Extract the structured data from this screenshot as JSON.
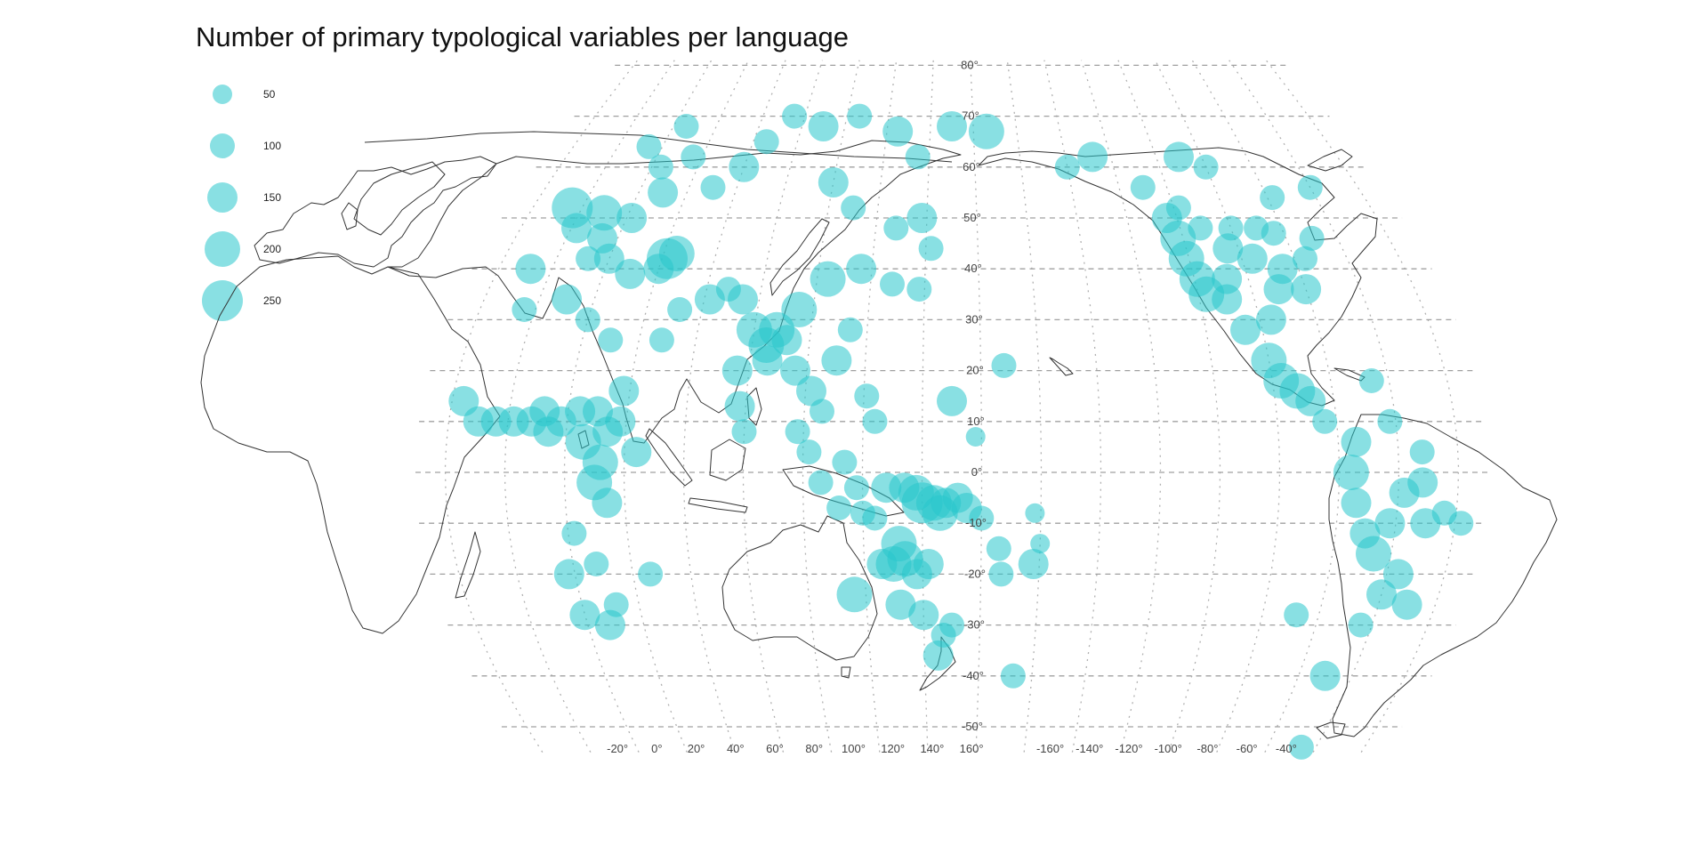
{
  "title": "Number of primary typological variables per language",
  "legend": {
    "items": [
      {
        "label": "50",
        "value": 50
      },
      {
        "label": "100",
        "value": 100
      },
      {
        "label": "150",
        "value": 150
      },
      {
        "label": "200",
        "value": 200
      },
      {
        "label": "250",
        "value": 250
      }
    ]
  },
  "point_color": "#28c6cc",
  "coastline_color": "#333333",
  "graticule_color": "#a0a0a0",
  "projection": "pacific-centered pseudocylindrical, central meridian 150°E",
  "lat_labels": [
    "80°",
    "70°",
    "60°",
    "50°",
    "40°",
    "30°",
    "20°",
    "10°",
    "0°",
    "-10°",
    "-20°",
    "-30°",
    "-40°",
    "-50°"
  ],
  "lon_labels": [
    "-20°",
    "0°",
    "20°",
    "40°",
    "60°",
    "80°",
    "100°",
    "120°",
    "140°",
    "160°",
    "-160°",
    "-140°",
    "-120°",
    "-100°",
    "-80°",
    "-60°",
    "-40°"
  ],
  "chart_data": {
    "type": "scatter",
    "title": "Number of primary typological variables per language",
    "size_legend": [
      50,
      100,
      150,
      200,
      250
    ],
    "x_label": "",
    "y_label": "",
    "points": [
      {
        "lon": 2,
        "lat": 48,
        "v": 150
      },
      {
        "lon": -4,
        "lat": 52,
        "v": 250
      },
      {
        "lon": 10,
        "lat": 51,
        "v": 200
      },
      {
        "lon": 14,
        "lat": 46,
        "v": 150
      },
      {
        "lon": 22,
        "lat": 50,
        "v": 150
      },
      {
        "lon": 30,
        "lat": 55,
        "v": 150
      },
      {
        "lon": 24,
        "lat": 60,
        "v": 100
      },
      {
        "lon": 14,
        "lat": 64,
        "v": 100
      },
      {
        "lon": 26,
        "lat": 68,
        "v": 100
      },
      {
        "lon": 36,
        "lat": 62,
        "v": 100
      },
      {
        "lon": 42,
        "lat": 42,
        "v": 250
      },
      {
        "lon": 45,
        "lat": 43,
        "v": 200
      },
      {
        "lon": 40,
        "lat": 40,
        "v": 150
      },
      {
        "lon": 30,
        "lat": 39,
        "v": 150
      },
      {
        "lon": 20,
        "lat": 42,
        "v": 150
      },
      {
        "lon": -8,
        "lat": 40,
        "v": 150
      },
      {
        "lon": 12,
        "lat": 42,
        "v": 100
      },
      {
        "lon": 50,
        "lat": 56,
        "v": 100
      },
      {
        "lon": 60,
        "lat": 60,
        "v": 150
      },
      {
        "lon": 66,
        "lat": 65,
        "v": 100
      },
      {
        "lon": 75,
        "lat": 70,
        "v": 100
      },
      {
        "lon": 90,
        "lat": 68,
        "v": 150
      },
      {
        "lon": 106,
        "lat": 70,
        "v": 100
      },
      {
        "lon": 125,
        "lat": 67,
        "v": 150
      },
      {
        "lon": 135,
        "lat": 62,
        "v": 100
      },
      {
        "lon": 150,
        "lat": 68,
        "v": 150
      },
      {
        "lon": 166,
        "lat": 67,
        "v": 200
      },
      {
        "lon": 100,
        "lat": 57,
        "v": 150
      },
      {
        "lon": 110,
        "lat": 52,
        "v": 100
      },
      {
        "lon": 128,
        "lat": 48,
        "v": 100
      },
      {
        "lon": 138,
        "lat": 50,
        "v": 150
      },
      {
        "lon": 142,
        "lat": 44,
        "v": 100
      },
      {
        "lon": 138,
        "lat": 36,
        "v": 100
      },
      {
        "lon": 128,
        "lat": 37,
        "v": 100
      },
      {
        "lon": 116,
        "lat": 40,
        "v": 150
      },
      {
        "lon": 104,
        "lat": 38,
        "v": 200
      },
      {
        "lon": 95,
        "lat": 32,
        "v": 200
      },
      {
        "lon": 88,
        "lat": 28,
        "v": 200
      },
      {
        "lon": 80,
        "lat": 28,
        "v": 200
      },
      {
        "lon": 85,
        "lat": 25,
        "v": 200
      },
      {
        "lon": 92,
        "lat": 26,
        "v": 150
      },
      {
        "lon": 74,
        "lat": 34,
        "v": 150
      },
      {
        "lon": 68,
        "lat": 36,
        "v": 100
      },
      {
        "lon": 62,
        "lat": 34,
        "v": 150
      },
      {
        "lon": 76,
        "lat": 20,
        "v": 150
      },
      {
        "lon": 78,
        "lat": 13,
        "v": 150
      },
      {
        "lon": 80,
        "lat": 8,
        "v": 100
      },
      {
        "lon": 86,
        "lat": 22,
        "v": 150
      },
      {
        "lon": 96,
        "lat": 20,
        "v": 150
      },
      {
        "lon": 102,
        "lat": 16,
        "v": 150
      },
      {
        "lon": 106,
        "lat": 12,
        "v": 100
      },
      {
        "lon": 98,
        "lat": 8,
        "v": 100
      },
      {
        "lon": 102,
        "lat": 4,
        "v": 100
      },
      {
        "lon": 110,
        "lat": 22,
        "v": 150
      },
      {
        "lon": 114,
        "lat": 28,
        "v": 100
      },
      {
        "lon": 121,
        "lat": 15,
        "v": 100
      },
      {
        "lon": 124,
        "lat": 10,
        "v": 100
      },
      {
        "lon": 114,
        "lat": 2,
        "v": 100
      },
      {
        "lon": 118,
        "lat": -3,
        "v": 100
      },
      {
        "lon": 106,
        "lat": -2,
        "v": 100
      },
      {
        "lon": 112,
        "lat": -7,
        "v": 100
      },
      {
        "lon": 120,
        "lat": -8,
        "v": 100
      },
      {
        "lon": 124,
        "lat": -9,
        "v": 100
      },
      {
        "lon": 128,
        "lat": -3,
        "v": 150
      },
      {
        "lon": 134,
        "lat": -3,
        "v": 150
      },
      {
        "lon": 138,
        "lat": -4,
        "v": 200
      },
      {
        "lon": 140,
        "lat": -6,
        "v": 250
      },
      {
        "lon": 144,
        "lat": -6,
        "v": 200
      },
      {
        "lon": 146,
        "lat": -8,
        "v": 200
      },
      {
        "lon": 148,
        "lat": -6,
        "v": 150
      },
      {
        "lon": 152,
        "lat": -5,
        "v": 150
      },
      {
        "lon": 155,
        "lat": -7,
        "v": 150
      },
      {
        "lon": 160,
        "lat": -9,
        "v": 100
      },
      {
        "lon": 166,
        "lat": -15,
        "v": 100
      },
      {
        "lon": 167,
        "lat": -20,
        "v": 100
      },
      {
        "lon": 178,
        "lat": -18,
        "v": 150
      },
      {
        "lon": 178,
        "lat": -8,
        "v": 50
      },
      {
        "lon": 180,
        "lat": -14,
        "v": 50
      },
      {
        "lon": 168,
        "lat": 21,
        "v": 100
      },
      {
        "lon": 158,
        "lat": 7,
        "v": 50
      },
      {
        "lon": 150,
        "lat": 14,
        "v": 150
      },
      {
        "lon": 132,
        "lat": -14,
        "v": 200
      },
      {
        "lon": 134,
        "lat": -17,
        "v": 200
      },
      {
        "lon": 130,
        "lat": -18,
        "v": 200
      },
      {
        "lon": 126,
        "lat": -18,
        "v": 150
      },
      {
        "lon": 138,
        "lat": -20,
        "v": 150
      },
      {
        "lon": 142,
        "lat": -18,
        "v": 150
      },
      {
        "lon": 116,
        "lat": -24,
        "v": 200
      },
      {
        "lon": 132,
        "lat": -26,
        "v": 150
      },
      {
        "lon": 140,
        "lat": -28,
        "v": 150
      },
      {
        "lon": 150,
        "lat": -30,
        "v": 100
      },
      {
        "lon": 145,
        "lat": -36,
        "v": 150
      },
      {
        "lon": 147,
        "lat": -32,
        "v": 100
      },
      {
        "lon": 173,
        "lat": -40,
        "v": 100
      },
      {
        "lon": -16,
        "lat": 14,
        "v": 150
      },
      {
        "lon": -10,
        "lat": 10,
        "v": 150
      },
      {
        "lon": -4,
        "lat": 10,
        "v": 150
      },
      {
        "lon": 2,
        "lat": 10,
        "v": 150
      },
      {
        "lon": 8,
        "lat": 10,
        "v": 150
      },
      {
        "lon": 12,
        "lat": 12,
        "v": 150
      },
      {
        "lon": 14,
        "lat": 8,
        "v": 150
      },
      {
        "lon": 18,
        "lat": 10,
        "v": 150
      },
      {
        "lon": 24,
        "lat": 12,
        "v": 150
      },
      {
        "lon": 30,
        "lat": 12,
        "v": 150
      },
      {
        "lon": 34,
        "lat": 8,
        "v": 150
      },
      {
        "lon": 38,
        "lat": 10,
        "v": 150
      },
      {
        "lon": 26,
        "lat": 6,
        "v": 200
      },
      {
        "lon": 32,
        "lat": 2,
        "v": 200
      },
      {
        "lon": 30,
        "lat": -2,
        "v": 200
      },
      {
        "lon": 34,
        "lat": -6,
        "v": 150
      },
      {
        "lon": 44,
        "lat": 4,
        "v": 150
      },
      {
        "lon": 22,
        "lat": -12,
        "v": 100
      },
      {
        "lon": 28,
        "lat": -18,
        "v": 100
      },
      {
        "lon": 18,
        "lat": -20,
        "v": 150
      },
      {
        "lon": 20,
        "lat": -28,
        "v": 150
      },
      {
        "lon": 28,
        "lat": -30,
        "v": 150
      },
      {
        "lon": 32,
        "lat": -26,
        "v": 100
      },
      {
        "lon": 46,
        "lat": -20,
        "v": 100
      },
      {
        "lon": 10,
        "lat": 34,
        "v": 150
      },
      {
        "lon": -4,
        "lat": 32,
        "v": 100
      },
      {
        "lon": 20,
        "lat": 30,
        "v": 100
      },
      {
        "lon": 30,
        "lat": 26,
        "v": 100
      },
      {
        "lon": 38,
        "lat": 16,
        "v": 150
      },
      {
        "lon": 48,
        "lat": 26,
        "v": 100
      },
      {
        "lon": 52,
        "lat": 32,
        "v": 100
      },
      {
        "lon": -148,
        "lat": 62,
        "v": 150
      },
      {
        "lon": -160,
        "lat": 60,
        "v": 100
      },
      {
        "lon": -130,
        "lat": 56,
        "v": 100
      },
      {
        "lon": -124,
        "lat": 50,
        "v": 150
      },
      {
        "lon": -122,
        "lat": 46,
        "v": 200
      },
      {
        "lon": -121,
        "lat": 42,
        "v": 200
      },
      {
        "lon": -119,
        "lat": 38,
        "v": 200
      },
      {
        "lon": -117,
        "lat": 35,
        "v": 200
      },
      {
        "lon": -110,
        "lat": 34,
        "v": 150
      },
      {
        "lon": -108,
        "lat": 38,
        "v": 150
      },
      {
        "lon": -104,
        "lat": 44,
        "v": 150
      },
      {
        "lon": -112,
        "lat": 48,
        "v": 100
      },
      {
        "lon": -100,
        "lat": 48,
        "v": 100
      },
      {
        "lon": -96,
        "lat": 42,
        "v": 150
      },
      {
        "lon": -90,
        "lat": 36,
        "v": 150
      },
      {
        "lon": -86,
        "lat": 40,
        "v": 150
      },
      {
        "lon": -80,
        "lat": 36,
        "v": 150
      },
      {
        "lon": -76,
        "lat": 42,
        "v": 100
      },
      {
        "lon": -70,
        "lat": 46,
        "v": 100
      },
      {
        "lon": -84,
        "lat": 47,
        "v": 100
      },
      {
        "lon": -96,
        "lat": 30,
        "v": 150
      },
      {
        "lon": -106,
        "lat": 28,
        "v": 150
      },
      {
        "lon": -100,
        "lat": 22,
        "v": 200
      },
      {
        "lon": -97,
        "lat": 18,
        "v": 200
      },
      {
        "lon": -92,
        "lat": 16,
        "v": 200
      },
      {
        "lon": -88,
        "lat": 14,
        "v": 150
      },
      {
        "lon": -84,
        "lat": 10,
        "v": 100
      },
      {
        "lon": -74,
        "lat": 6,
        "v": 150
      },
      {
        "lon": -76,
        "lat": 0,
        "v": 200
      },
      {
        "lon": -74,
        "lat": -6,
        "v": 150
      },
      {
        "lon": -70,
        "lat": -12,
        "v": 150
      },
      {
        "lon": -66,
        "lat": -16,
        "v": 200
      },
      {
        "lon": -62,
        "lat": -10,
        "v": 150
      },
      {
        "lon": -58,
        "lat": -4,
        "v": 150
      },
      {
        "lon": -52,
        "lat": -2,
        "v": 150
      },
      {
        "lon": -50,
        "lat": -10,
        "v": 150
      },
      {
        "lon": -44,
        "lat": -8,
        "v": 100
      },
      {
        "lon": -38,
        "lat": -10,
        "v": 100
      },
      {
        "lon": -56,
        "lat": -20,
        "v": 150
      },
      {
        "lon": -60,
        "lat": -24,
        "v": 150
      },
      {
        "lon": -50,
        "lat": -26,
        "v": 150
      },
      {
        "lon": -64,
        "lat": -30,
        "v": 100
      },
      {
        "lon": -70,
        "lat": -40,
        "v": 150
      },
      {
        "lon": -66,
        "lat": -54,
        "v": 100
      },
      {
        "lon": -88,
        "lat": -28,
        "v": 100
      },
      {
        "lon": -62,
        "lat": 10,
        "v": 100
      },
      {
        "lon": -66,
        "lat": 18,
        "v": 100
      },
      {
        "lon": -52,
        "lat": 4,
        "v": 100
      },
      {
        "lon": -100,
        "lat": 60,
        "v": 100
      },
      {
        "lon": -60,
        "lat": 56,
        "v": 100
      },
      {
        "lon": -78,
        "lat": 54,
        "v": 100
      },
      {
        "lon": -110,
        "lat": 62,
        "v": 150
      },
      {
        "lon": -118,
        "lat": 52,
        "v": 100
      },
      {
        "lon": -90,
        "lat": 48,
        "v": 100
      }
    ]
  }
}
